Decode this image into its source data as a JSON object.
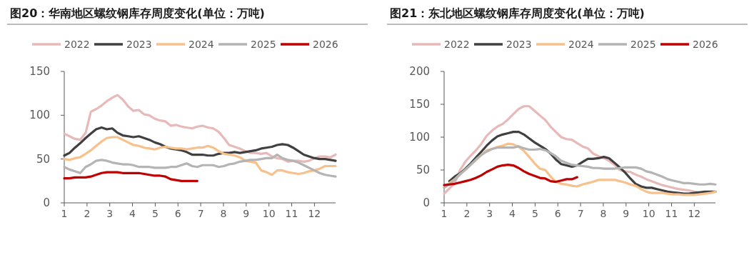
{
  "chart_data": [
    {
      "type": "line",
      "title": "图20：华南地区螺纹钢库存周度变化(单位：万吨)",
      "legend": "top",
      "grid": false,
      "xlim": [
        1,
        12.93
      ],
      "xticks": [
        1,
        2,
        3,
        4,
        5,
        6,
        7,
        8,
        9,
        10,
        11,
        12
      ],
      "ylim": [
        0,
        150
      ],
      "yticks": [
        0,
        50,
        100,
        150
      ],
      "x": [
        1,
        1.23,
        1.47,
        1.7,
        1.94,
        2.17,
        2.4,
        2.64,
        2.87,
        3.11,
        3.34,
        3.57,
        3.81,
        4.04,
        4.28,
        4.51,
        4.74,
        4.98,
        5.21,
        5.45,
        5.68,
        5.91,
        6.15,
        6.38,
        6.62,
        6.85,
        7.08,
        7.32,
        7.55,
        7.79,
        8.02,
        8.25,
        8.49,
        8.72,
        8.96,
        9.19,
        9.42,
        9.66,
        9.89,
        10.13,
        10.36,
        10.59,
        10.83,
        11.06,
        11.3,
        11.53,
        11.76,
        12,
        12.23,
        12.47,
        12.7,
        12.93
      ],
      "series": [
        {
          "name": "2022",
          "color": "#e8b9b9",
          "values": [
            79,
            76,
            73,
            72,
            80,
            104,
            107,
            111,
            116,
            120,
            123,
            118,
            110,
            105,
            106,
            101,
            100,
            96,
            94,
            93,
            88,
            89,
            87,
            86,
            85,
            87,
            88,
            86,
            85,
            81,
            74,
            66,
            64,
            62,
            59,
            57,
            57,
            56,
            57,
            53,
            51,
            50,
            47,
            48,
            48,
            47,
            48,
            51,
            53,
            53,
            52,
            55
          ]
        },
        {
          "name": "2023",
          "color": "#404040",
          "values": [
            54,
            57,
            63,
            68,
            74,
            79,
            84,
            86,
            84,
            85,
            80,
            77,
            76,
            75,
            76,
            74,
            72,
            69,
            67,
            64,
            62,
            61,
            60,
            58,
            55,
            55,
            55,
            54,
            54,
            56,
            57,
            57,
            58,
            57,
            58,
            59,
            60,
            62,
            63,
            64,
            66,
            67,
            66,
            63,
            59,
            55,
            53,
            51,
            50,
            50,
            49,
            48
          ]
        },
        {
          "name": "2024",
          "color": "#f8c08a",
          "values": [
            50,
            49,
            51,
            52,
            56,
            60,
            65,
            70,
            74,
            75,
            75,
            72,
            69,
            66,
            65,
            63,
            62,
            61,
            63,
            64,
            63,
            62,
            62,
            61,
            62,
            63,
            63,
            65,
            63,
            59,
            56,
            55,
            54,
            52,
            48,
            47,
            46,
            37,
            35,
            32,
            37,
            37,
            35,
            34,
            33,
            34,
            36,
            37,
            39,
            42,
            42,
            42
          ]
        },
        {
          "name": "2025",
          "color": "#b4b4b4",
          "values": [
            41,
            38,
            36,
            34,
            41,
            44,
            48,
            49,
            48,
            46,
            45,
            44,
            44,
            43,
            41,
            41,
            41,
            40,
            40,
            40,
            41,
            41,
            43,
            45,
            42,
            41,
            43,
            43,
            43,
            41,
            42,
            44,
            45,
            47,
            48,
            49,
            49,
            50,
            51,
            51,
            55,
            51,
            49,
            48,
            46,
            43,
            40,
            37,
            34,
            32,
            31,
            30
          ]
        },
        {
          "name": "2026",
          "color": "#c00000",
          "x": [
            1,
            1.23,
            1.47,
            1.7,
            1.94,
            2.17,
            2.4,
            2.64,
            2.87,
            3.11,
            3.34,
            3.57,
            3.81,
            4.04,
            4.28,
            4.51,
            4.74,
            4.98,
            5.21,
            5.45,
            5.68,
            5.91,
            6.15,
            6.38,
            6.62,
            6.85
          ],
          "values": [
            28,
            28,
            29,
            29,
            29,
            30,
            32,
            34,
            35,
            35,
            35,
            34,
            34,
            34,
            34,
            33,
            32,
            31,
            31,
            30,
            27,
            26,
            25,
            25,
            25,
            25
          ]
        }
      ]
    },
    {
      "type": "line",
      "title": "图21：东北地区螺纹钢库存周度变化(单位：万吨)",
      "legend": "top",
      "grid": false,
      "xlim": [
        1,
        12.93
      ],
      "xticks": [
        1,
        2,
        3,
        4,
        5,
        6,
        7,
        8,
        9,
        10,
        11,
        12
      ],
      "ylim": [
        0,
        200
      ],
      "yticks": [
        0,
        50,
        100,
        150,
        200
      ],
      "x": [
        1,
        1.23,
        1.47,
        1.7,
        1.94,
        2.17,
        2.4,
        2.64,
        2.87,
        3.11,
        3.34,
        3.57,
        3.81,
        4.04,
        4.28,
        4.51,
        4.74,
        4.98,
        5.21,
        5.45,
        5.68,
        5.91,
        6.15,
        6.38,
        6.62,
        6.85,
        7.08,
        7.32,
        7.55,
        7.79,
        8.02,
        8.25,
        8.49,
        8.72,
        8.96,
        9.19,
        9.42,
        9.66,
        9.89,
        10.13,
        10.36,
        10.59,
        10.83,
        11.06,
        11.3,
        11.53,
        11.76,
        12,
        12.23,
        12.47,
        12.7,
        12.93
      ],
      "series": [
        {
          "name": "2022",
          "color": "#e8b9b9",
          "values": [
            14,
            22,
            30,
            50,
            63,
            72,
            80,
            90,
            102,
            110,
            116,
            120,
            127,
            135,
            143,
            147,
            147,
            140,
            133,
            126,
            116,
            108,
            100,
            97,
            96,
            91,
            86,
            83,
            75,
            71,
            68,
            64,
            58,
            50,
            48,
            47,
            43,
            40,
            36,
            33,
            30,
            27,
            25,
            23,
            21,
            20,
            19,
            17,
            16,
            15,
            16,
            17
          ]
        },
        {
          "name": "2023",
          "color": "#404040",
          "values": [
            null,
            33,
            40,
            45,
            52,
            60,
            69,
            78,
            87,
            95,
            101,
            104,
            106,
            108,
            108,
            104,
            98,
            92,
            87,
            82,
            75,
            66,
            59,
            57,
            55,
            57,
            62,
            67,
            67,
            68,
            70,
            68,
            61,
            54,
            46,
            37,
            29,
            25,
            23,
            23,
            21,
            19,
            17,
            16,
            15,
            14,
            14,
            15,
            16,
            17,
            17,
            17
          ]
        },
        {
          "name": "2024",
          "color": "#f8c08a",
          "values": [
            24,
            30,
            36,
            44,
            50,
            58,
            65,
            73,
            80,
            82,
            85,
            87,
            90,
            89,
            85,
            79,
            70,
            60,
            52,
            50,
            40,
            32,
            29,
            28,
            26,
            25,
            28,
            30,
            32,
            35,
            35,
            35,
            35,
            33,
            31,
            28,
            26,
            21,
            17,
            15,
            15,
            15,
            14,
            13,
            13,
            12,
            12,
            12,
            13,
            14,
            15,
            17
          ]
        },
        {
          "name": "2025",
          "color": "#b4b4b4",
          "values": [
            23,
            28,
            35,
            43,
            51,
            58,
            66,
            73,
            78,
            82,
            84,
            84,
            84,
            84,
            86,
            83,
            81,
            81,
            82,
            80,
            76,
            71,
            64,
            61,
            58,
            57,
            56,
            55,
            53,
            53,
            52,
            52,
            52,
            53,
            54,
            54,
            54,
            52,
            48,
            46,
            43,
            40,
            36,
            34,
            32,
            30,
            30,
            29,
            28,
            28,
            29,
            28
          ]
        },
        {
          "name": "2026",
          "color": "#c00000",
          "x": [
            1,
            1.23,
            1.47,
            1.7,
            1.94,
            2.17,
            2.4,
            2.64,
            2.87,
            3.11,
            3.34,
            3.57,
            3.81,
            4.04,
            4.28,
            4.51,
            4.74,
            4.98,
            5.21,
            5.45,
            5.68,
            5.91,
            6.15,
            6.38,
            6.62,
            6.85
          ],
          "values": [
            27,
            28,
            29,
            31,
            33,
            35,
            38,
            42,
            47,
            51,
            55,
            57,
            58,
            57,
            53,
            48,
            44,
            41,
            38,
            37,
            33,
            32,
            34,
            36,
            36,
            39
          ]
        }
      ]
    }
  ]
}
